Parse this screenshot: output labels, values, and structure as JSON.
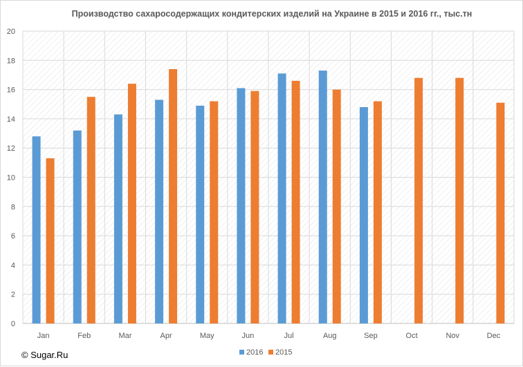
{
  "chart_data": {
    "type": "bar",
    "title": "Производство сахаросодержащих кондитерских изделий на Украине в 2015 и 2016 гг., тыс.тн",
    "xlabel": "",
    "ylabel": "",
    "ylim": [
      0,
      20
    ],
    "yticks": [
      "0",
      "2",
      "4",
      "6",
      "8",
      "10",
      "12",
      "14",
      "16",
      "18",
      "20"
    ],
    "categories": [
      "Jan",
      "Feb",
      "Mar",
      "Apr",
      "May",
      "Jun",
      "Jul",
      "Aug",
      "Sep",
      "Oct",
      "Nov",
      "Dec"
    ],
    "series": [
      {
        "name": "2016",
        "color": "#5b9bd5",
        "values": [
          12.8,
          13.2,
          14.3,
          15.3,
          14.9,
          16.1,
          17.1,
          17.3,
          14.8,
          null,
          null,
          null
        ]
      },
      {
        "name": "2015",
        "color": "#ed7d31",
        "values": [
          11.3,
          15.5,
          16.4,
          17.4,
          15.2,
          15.9,
          16.6,
          16.0,
          15.2,
          16.8,
          16.8,
          15.1
        ]
      }
    ],
    "grid": true,
    "legend_position": "bottom"
  },
  "credit": "© Sugar.Ru"
}
